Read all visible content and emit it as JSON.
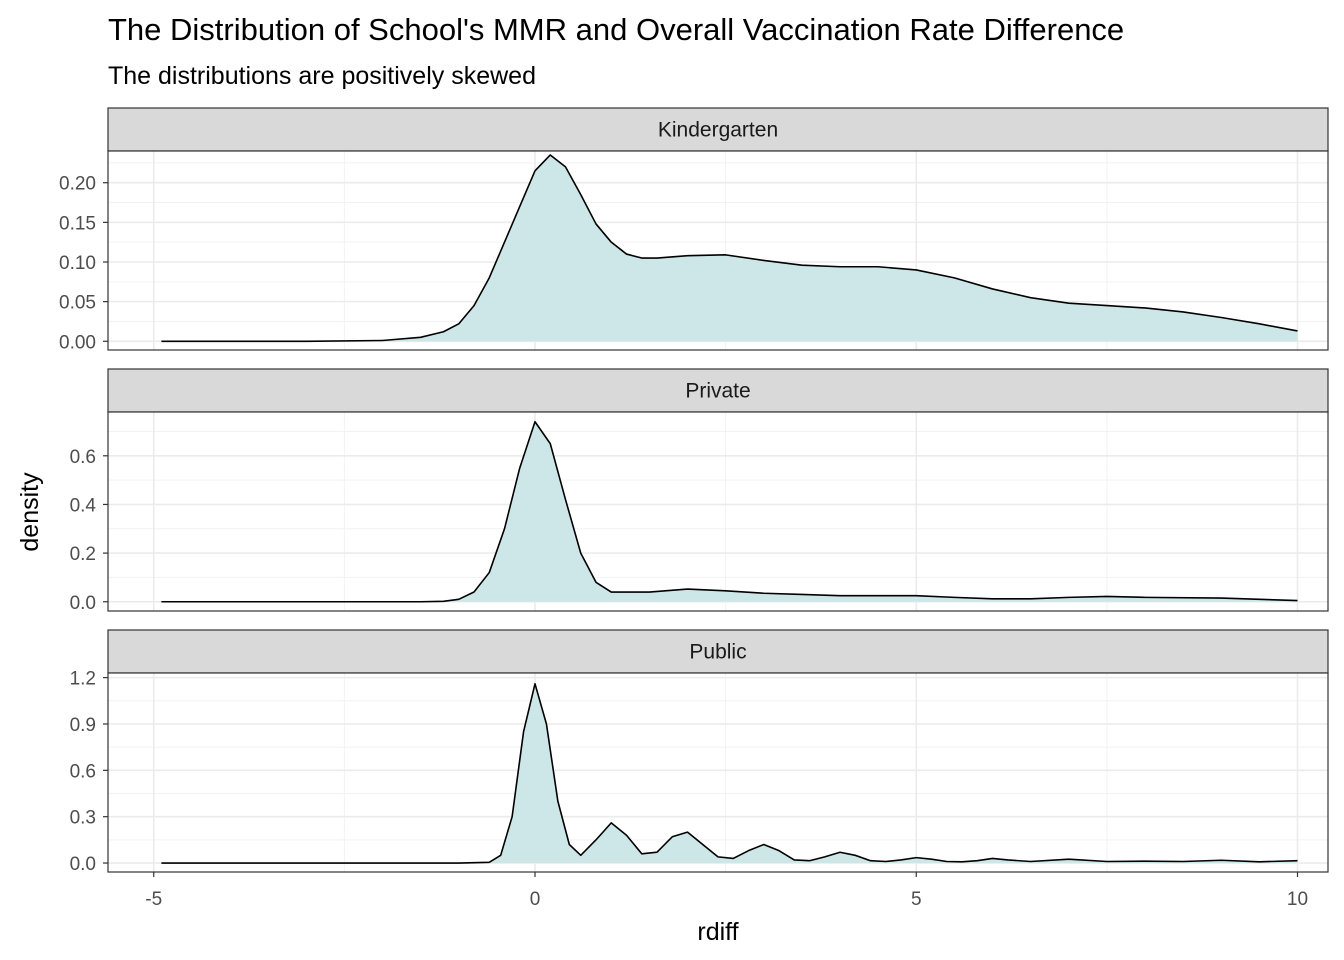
{
  "chart_data": {
    "type": "area",
    "title": "The Distribution of School's MMR and Overall Vaccination Rate Difference",
    "subtitle": "The distributions are positively skewed",
    "xlabel": "rdiff",
    "ylabel": "density",
    "xlim": [
      -5.6,
      10.4
    ],
    "x_ticks": [
      -5,
      0,
      5,
      10
    ],
    "x_tick_labels": [
      "-5",
      "0",
      "5",
      "10"
    ],
    "grid": true,
    "fill_color": "#cde7e8",
    "line_color": "#000000",
    "facets": [
      {
        "label": "Kindergarten",
        "ylim": [
          -0.011,
          0.24
        ],
        "y_ticks": [
          0,
          0.05,
          0.1,
          0.15,
          0.2
        ],
        "y_tick_labels": [
          "0.00",
          "0.05",
          "0.10",
          "0.15",
          "0.20"
        ],
        "x": [
          -4.9,
          -3,
          -2,
          -1.5,
          -1.2,
          -1,
          -0.8,
          -0.6,
          -0.4,
          -0.2,
          0,
          0.2,
          0.4,
          0.6,
          0.8,
          1,
          1.2,
          1.4,
          1.6,
          2,
          2.5,
          3,
          3.5,
          4,
          4.5,
          5,
          5.5,
          6,
          6.5,
          7,
          7.5,
          8,
          8.5,
          9,
          9.5,
          10
        ],
        "y": [
          0,
          0,
          0.001,
          0.005,
          0.012,
          0.022,
          0.045,
          0.08,
          0.125,
          0.17,
          0.215,
          0.235,
          0.22,
          0.185,
          0.148,
          0.125,
          0.11,
          0.105,
          0.105,
          0.108,
          0.109,
          0.102,
          0.096,
          0.094,
          0.094,
          0.09,
          0.08,
          0.066,
          0.055,
          0.048,
          0.045,
          0.042,
          0.037,
          0.03,
          0.022,
          0.013
        ]
      },
      {
        "label": "Private",
        "ylim": [
          -0.038,
          0.78
        ],
        "y_ticks": [
          0,
          0.2,
          0.4,
          0.6
        ],
        "y_tick_labels": [
          "0.0",
          "0.2",
          "0.4",
          "0.6"
        ],
        "x": [
          -4.9,
          -2,
          -1.5,
          -1.2,
          -1,
          -0.8,
          -0.6,
          -0.4,
          -0.2,
          0,
          0.2,
          0.4,
          0.6,
          0.8,
          1,
          1.5,
          2,
          2.5,
          3,
          3.5,
          4,
          5,
          5.5,
          6,
          6.5,
          7,
          7.5,
          8,
          9,
          10
        ],
        "y": [
          0,
          0,
          0,
          0.002,
          0.01,
          0.04,
          0.12,
          0.3,
          0.55,
          0.74,
          0.65,
          0.42,
          0.2,
          0.08,
          0.04,
          0.04,
          0.052,
          0.045,
          0.035,
          0.03,
          0.025,
          0.025,
          0.018,
          0.012,
          0.012,
          0.018,
          0.022,
          0.018,
          0.015,
          0.005
        ]
      },
      {
        "label": "Public",
        "ylim": [
          -0.058,
          1.23
        ],
        "y_ticks": [
          0,
          0.3,
          0.6,
          0.9,
          1.2
        ],
        "y_tick_labels": [
          "0.0",
          "0.3",
          "0.6",
          "0.9",
          "1.2"
        ],
        "x": [
          -4.9,
          -1,
          -0.6,
          -0.45,
          -0.3,
          -0.15,
          0,
          0.15,
          0.3,
          0.45,
          0.6,
          0.8,
          1,
          1.2,
          1.4,
          1.6,
          1.8,
          2,
          2.2,
          2.4,
          2.6,
          2.8,
          3,
          3.2,
          3.4,
          3.6,
          3.8,
          4,
          4.2,
          4.4,
          4.6,
          4.8,
          5,
          5.2,
          5.4,
          5.6,
          5.8,
          6,
          6.2,
          6.5,
          7,
          7.5,
          8,
          8.5,
          9,
          9.5,
          10
        ],
        "y": [
          0,
          0,
          0.005,
          0.05,
          0.3,
          0.85,
          1.16,
          0.9,
          0.4,
          0.12,
          0.05,
          0.15,
          0.26,
          0.18,
          0.06,
          0.07,
          0.17,
          0.2,
          0.12,
          0.04,
          0.03,
          0.08,
          0.12,
          0.08,
          0.02,
          0.015,
          0.04,
          0.07,
          0.05,
          0.015,
          0.01,
          0.02,
          0.035,
          0.025,
          0.01,
          0.008,
          0.015,
          0.03,
          0.02,
          0.01,
          0.025,
          0.01,
          0.012,
          0.01,
          0.018,
          0.008,
          0.015
        ]
      }
    ]
  }
}
